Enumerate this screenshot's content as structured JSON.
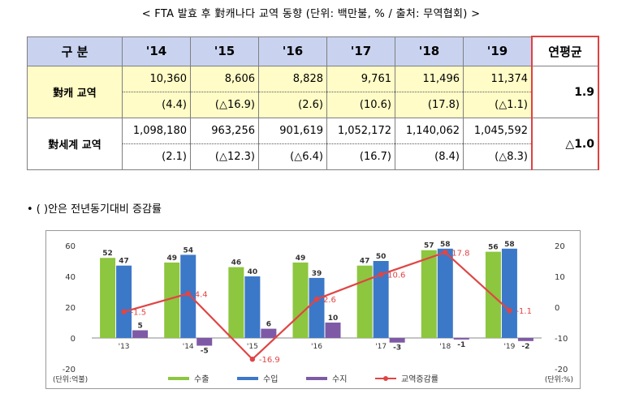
{
  "title": "< FTA 발효 후 對캐나다 교역 동향 (단위: 백만불, % / 출처: 무역협회) >",
  "table": {
    "header_label": "구 분",
    "years": [
      "'14",
      "'15",
      "'16",
      "'17",
      "'18",
      "'19"
    ],
    "avg_label": "연평균",
    "rows": [
      {
        "label": "對캐 교역",
        "values": [
          "10,360",
          "8,606",
          "8,828",
          "9,761",
          "11,496",
          "11,374"
        ],
        "changes": [
          "(4.4)",
          "(△16.9)",
          "(2.6)",
          "(10.6)",
          "(17.8)",
          "(△1.1)"
        ],
        "avg": "1.9"
      },
      {
        "label": "對세계 교역",
        "values": [
          "1,098,180",
          "963,256",
          "901,619",
          "1,052,172",
          "1,140,062",
          "1,045,592"
        ],
        "changes": [
          "(2.1)",
          "(△12.3)",
          "(△6.4)",
          "(16.7)",
          "(8.4)",
          "(△8.3)"
        ],
        "avg": "△1.0"
      }
    ]
  },
  "note": "• (   )안은  전년동기대비 증감률",
  "chart_data": {
    "type": "bar",
    "categories": [
      "'13",
      "'14",
      "'15",
      "'16",
      "'17",
      "'18",
      "'19"
    ],
    "series": [
      {
        "name": "수출",
        "type": "bar",
        "axis": "left",
        "color": "#8dc63f",
        "values": [
          52,
          49,
          46,
          49,
          47,
          57,
          56
        ]
      },
      {
        "name": "수입",
        "type": "bar",
        "axis": "left",
        "color": "#3c78c8",
        "values": [
          47,
          54,
          40,
          39,
          50,
          58,
          58
        ]
      },
      {
        "name": "수지",
        "type": "bar",
        "axis": "left",
        "color": "#7e5aa6",
        "values": [
          5,
          -5,
          6,
          10,
          -3,
          -1,
          -2
        ]
      },
      {
        "name": "교역증감률",
        "type": "line",
        "axis": "right",
        "color": "#e04545",
        "values": [
          -1.5,
          4.4,
          -16.9,
          2.6,
          10.6,
          17.8,
          -1.1
        ]
      }
    ],
    "left_axis": {
      "ticks": [
        "60",
        "40",
        "20",
        "0",
        "-20"
      ],
      "ylim": [
        -20,
        60
      ]
    },
    "right_axis": {
      "ticks": [
        "20",
        "10",
        "0",
        "-10",
        "-20"
      ],
      "ylim": [
        -20,
        20
      ]
    },
    "left_unit": "(단위:억불)",
    "right_unit": "(단위:%)",
    "grid": false,
    "legend_position": "bottom"
  }
}
